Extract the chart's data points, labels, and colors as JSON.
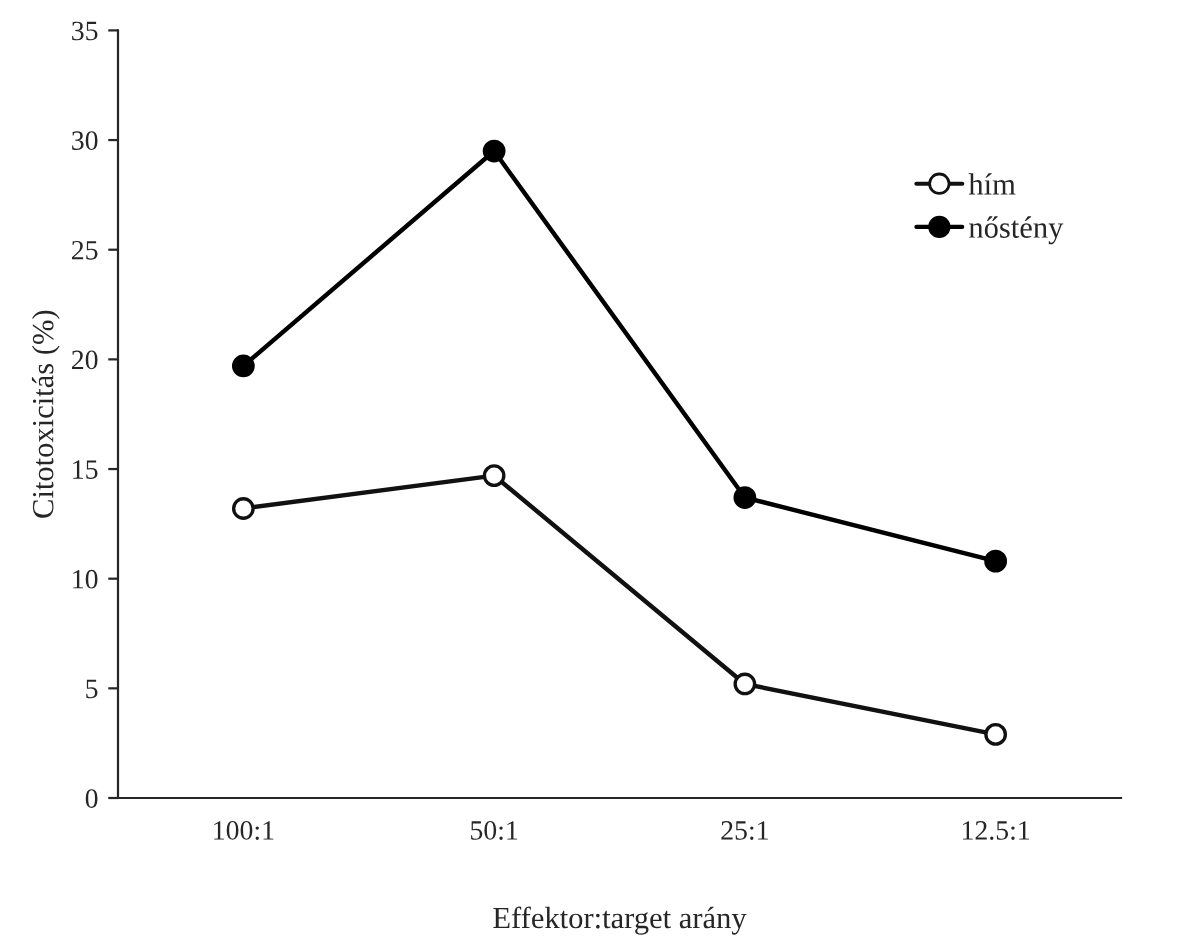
{
  "chart_data": {
    "type": "line",
    "xlabel": "Effektor:target arány",
    "ylabel": "Citotoxicitás (%)",
    "categories": [
      "100:1",
      "50:1",
      "25:1",
      "12.5:1"
    ],
    "series": [
      {
        "name": "hím",
        "color": "#111111",
        "values": [
          13.2,
          14.7,
          5.2,
          2.9
        ]
      },
      {
        "name": "nőstény",
        "color": "#000000",
        "values": [
          19.7,
          29.5,
          13.7,
          10.8
        ]
      }
    ],
    "ylim": [
      0,
      35
    ],
    "yticks": [
      0,
      5,
      10,
      15,
      20,
      25,
      30,
      35
    ],
    "grid": false,
    "legend": "top right",
    "marker": "circle",
    "line_style": "solid"
  }
}
